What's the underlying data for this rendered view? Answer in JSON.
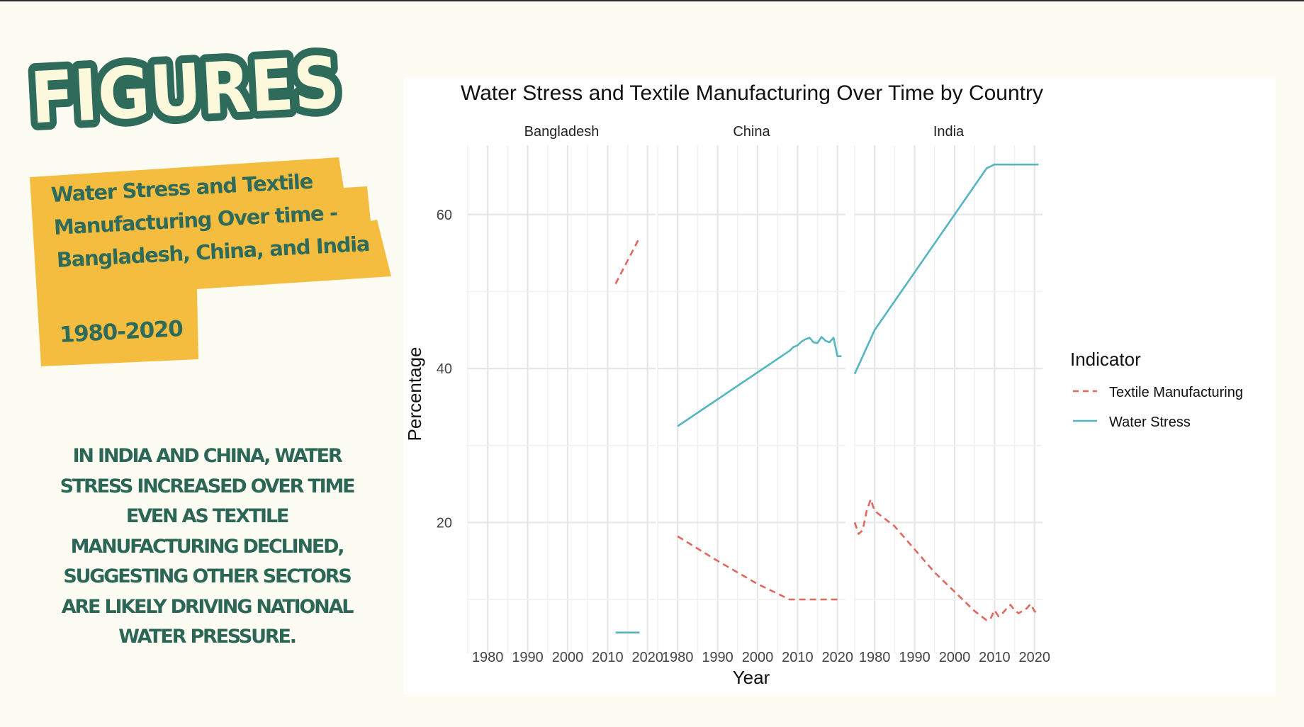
{
  "slide": {
    "heading": "FIGURES",
    "subtitle_lines": [
      "Water Stress and Textile",
      "Manufacturing Over time -",
      "Bangladesh, China, and India"
    ],
    "years": "1980-2020",
    "body_lines": [
      "IN INDIA AND CHINA, WATER",
      "STRESS INCREASED OVER TIME",
      "EVEN AS TEXTILE",
      "MANUFACTURING DECLINED,",
      "SUGGESTING OTHER SECTORS",
      "ARE LIKELY DRIVING NATIONAL",
      "WATER PRESSURE."
    ],
    "colors": {
      "background": "#fdfcf3",
      "green": "#2e6b5a",
      "cream": "#fbf8dc",
      "yellow": "#f4bd3f"
    }
  },
  "chart_data": {
    "type": "line",
    "title": "Water Stress and Textile Manufacturing Over Time by Country",
    "xlabel": "Year",
    "ylabel": "Percentage",
    "xlim": [
      1975,
      2022
    ],
    "ylim": [
      3,
      69
    ],
    "x_ticks": [
      1980,
      1990,
      2000,
      2010,
      2020
    ],
    "y_ticks": [
      20,
      40,
      60
    ],
    "grid": true,
    "legend": {
      "title": "Indicator",
      "placement": "right",
      "entries": [
        {
          "name": "Textile Manufacturing",
          "color": "#e0685f",
          "dash": "dashed"
        },
        {
          "name": "Water Stress",
          "color": "#55b6bf",
          "dash": "solid"
        }
      ]
    },
    "panels": [
      {
        "name": "Bangladesh",
        "series": [
          {
            "name": "Textile Manufacturing",
            "x": [
              2012,
              2018
            ],
            "values": [
              51,
              57
            ]
          },
          {
            "name": "Water Stress",
            "x": [
              2012,
              2018
            ],
            "values": [
              5.7,
              5.7
            ]
          }
        ]
      },
      {
        "name": "China",
        "series": [
          {
            "name": "Textile Manufacturing",
            "x": [
              1980,
              1990,
              2000,
              2008,
              2010,
              2015,
              2020
            ],
            "values": [
              18.2,
              15,
              12,
              10,
              10,
              10,
              10
            ]
          },
          {
            "name": "Water Stress",
            "x": [
              1980,
              1990,
              2000,
              2008,
              2009,
              2010,
              2011,
              2012,
              2013,
              2014,
              2015,
              2016,
              2017,
              2018,
              2019,
              2020,
              2021
            ],
            "values": [
              32.5,
              36,
              39.5,
              42.3,
              42.8,
              43,
              43.5,
              43.8,
              44,
              43.4,
              43.3,
              44.1,
              43.6,
              43.4,
              44,
              41.6,
              41.6
            ]
          }
        ]
      },
      {
        "name": "India",
        "series": [
          {
            "name": "Textile Manufacturing",
            "x": [
              1975,
              1976,
              1977,
              1978,
              1979,
              1980,
              1985,
              1990,
              1995,
              2000,
              2005,
              2008,
              2009,
              2010,
              2011,
              2012,
              2013,
              2014,
              2015,
              2016,
              2017,
              2018,
              2019,
              2020,
              2021
            ],
            "values": [
              20,
              18.5,
              19,
              21.5,
              23,
              21.5,
              19.5,
              16.5,
              13.5,
              11,
              8.5,
              7.3,
              7.5,
              8.6,
              7.8,
              8.2,
              8.8,
              9.3,
              8.6,
              8.2,
              8.5,
              8.8,
              9.4,
              8.5,
              8
            ]
          },
          {
            "name": "Water Stress",
            "x": [
              1975,
              1980,
              1990,
              2000,
              2008,
              2010,
              2015,
              2020,
              2021
            ],
            "values": [
              39.3,
              45,
              52.5,
              60,
              66,
              66.5,
              66.5,
              66.5,
              66.5
            ]
          }
        ]
      }
    ]
  }
}
